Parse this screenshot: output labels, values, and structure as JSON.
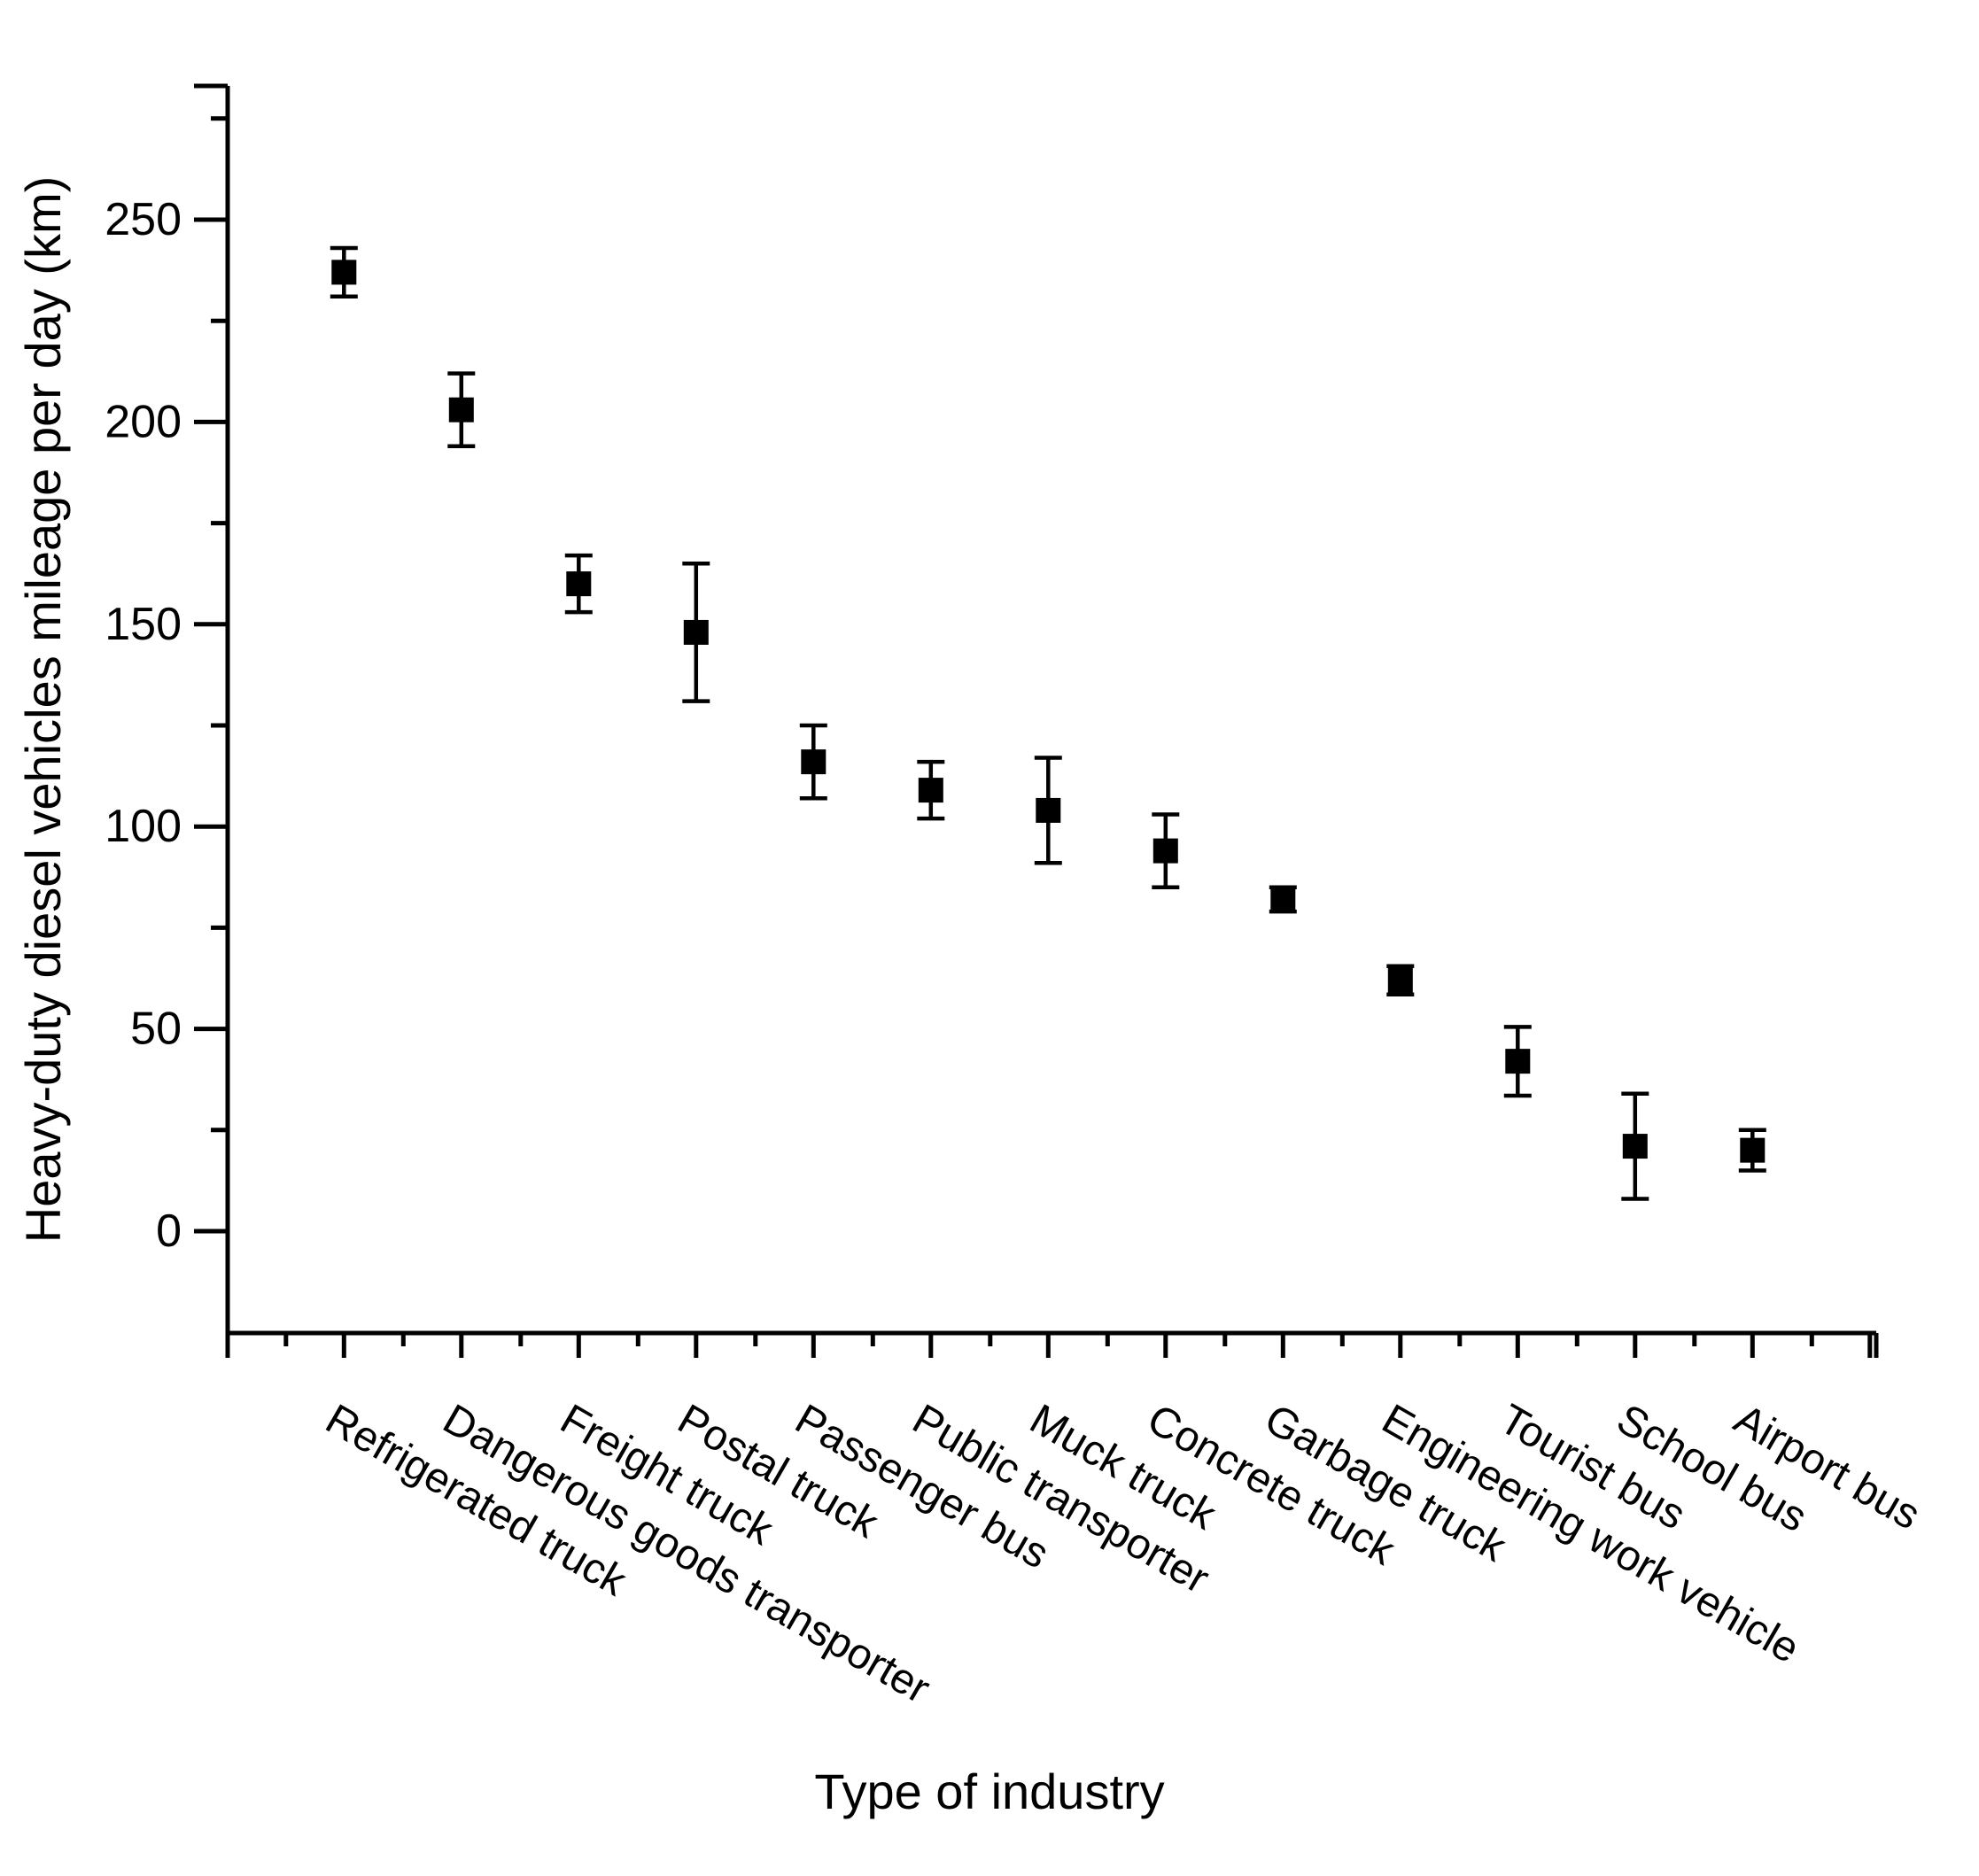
{
  "figure": {
    "background": "#ffffff",
    "foreground": "#000000",
    "marker_color": "#000000"
  },
  "chart_data": {
    "type": "scatter",
    "marker": "filled-square",
    "error_bars": true,
    "title": "",
    "xlabel": "Type of industry",
    "ylabel": "Heavy-duty diesel vehicles mileage per day (km)",
    "categories": [
      "Refrigerated truck",
      "Dangerous goods transporter",
      "Freight truck",
      "Postal truck",
      "Passenger bus",
      "Public transporter",
      "Muck truck",
      "Concrete truck",
      "Garbage truck",
      "Engineering work vehicle",
      "Tourist bus",
      "School bus",
      "Airport bus"
    ],
    "values": [
      237,
      203,
      160,
      148,
      116,
      109,
      104,
      94,
      82,
      62,
      42,
      21,
      20
    ],
    "errors": [
      6,
      9,
      7,
      17,
      9,
      7,
      13,
      9,
      3,
      3.5,
      8.5,
      13,
      5
    ],
    "y_ticks": [
      0,
      50,
      100,
      150,
      200,
      250
    ],
    "y_minor_ticks": [
      25,
      75,
      125,
      175,
      225,
      275
    ],
    "ylim": [
      -25,
      283
    ],
    "x_tick_label_rotation_deg": -30,
    "grid": false,
    "legend": "none"
  }
}
